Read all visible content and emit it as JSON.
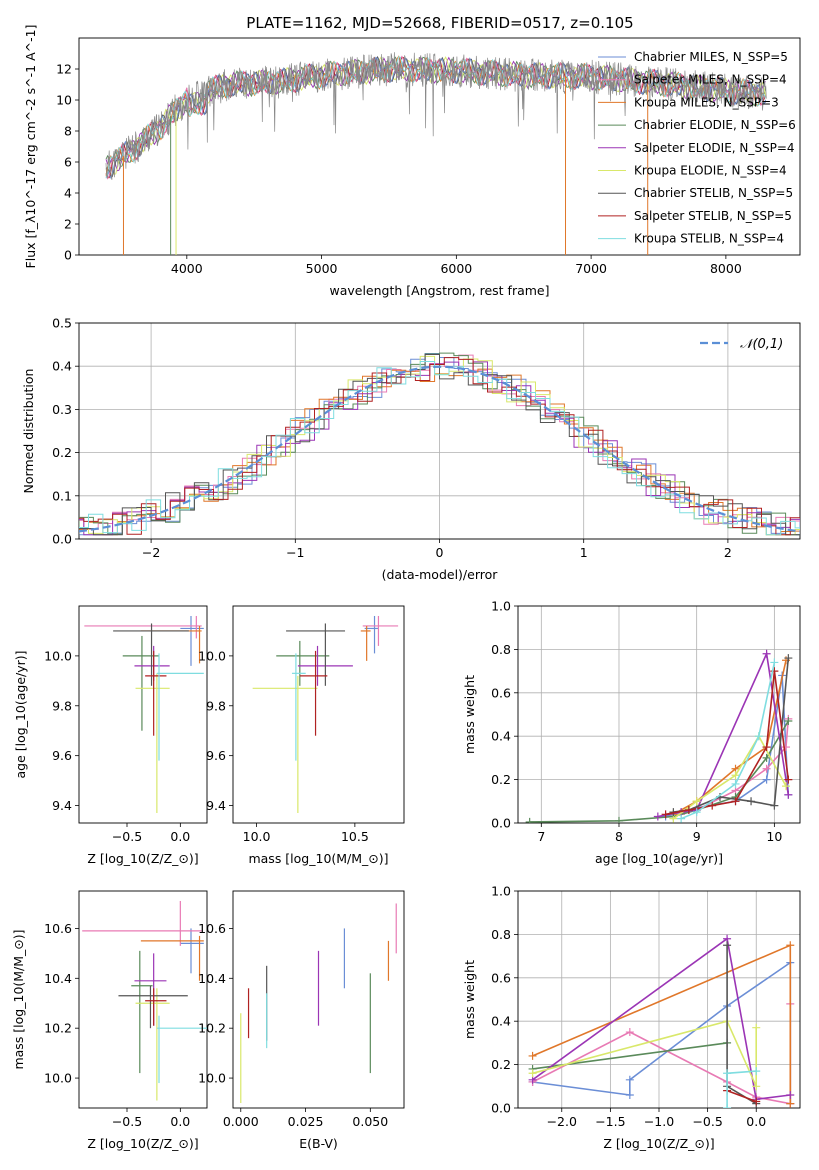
{
  "title": "PLATE=1162, MJD=52668, FIBERID=0517, z=0.105",
  "models": [
    {
      "label": "Chabrier MILES, N$_{SSP}$=5",
      "color": "#6b8ed6"
    },
    {
      "label": "Salpeter MILES, N$_{SSP}$=4",
      "color": "#e87ab4"
    },
    {
      "label": "Kroupa MILES, N$_{SSP}$=3",
      "color": "#e0772a"
    },
    {
      "label": "Chabrier ELODIE, N$_{SSP}$=6",
      "color": "#5a8a5a"
    },
    {
      "label": "Salpeter ELODIE, N$_{SSP}$=4",
      "color": "#9b35b5"
    },
    {
      "label": "Kroupa ELODIE, N$_{SSP}$=4",
      "color": "#d9e86a"
    },
    {
      "label": "Chabrier STELIB, N$_{SSP}$=5",
      "color": "#555555"
    },
    {
      "label": "Salpeter STELIB, N$_{SSP}$=5",
      "color": "#b02222"
    },
    {
      "label": "Kroupa STELIB, N$_{SSP}$=4",
      "color": "#7fdde0"
    }
  ],
  "chart_data": [
    {
      "id": "spectrum",
      "type": "line",
      "xlabel": "wavelength [Angstrom, rest frame]",
      "ylabel": "Flux [f$_\\lambda$10$^{-17}$ erg cm$^{-2}$ s$^{-1}$ A$^{-1}$]",
      "xlim": [
        3200,
        8550
      ],
      "ylim": [
        0,
        14
      ],
      "xticks": [
        4000,
        5000,
        6000,
        7000,
        8000
      ],
      "yticks": [
        0,
        2,
        4,
        6,
        8,
        10,
        12
      ],
      "data_color": "#888888",
      "continuum": {
        "x": [
          3400,
          3600,
          3800,
          4000,
          4300,
          4700,
          5000,
          5500,
          6000,
          6500,
          7000,
          7500,
          8000,
          8300
        ],
        "y": [
          5.6,
          6.8,
          8.2,
          10.1,
          11.0,
          11.2,
          11.6,
          12.0,
          11.9,
          11.6,
          11.5,
          11.1,
          10.6,
          10.4
        ]
      },
      "grid": false,
      "legend": "right"
    },
    {
      "id": "histogram",
      "type": "histogram",
      "xlabel": "(data-model)/error",
      "ylabel": "Normed distribution",
      "xlim": [
        -2.5,
        2.5
      ],
      "ylim": [
        0,
        0.5
      ],
      "xticks": [
        -2,
        -1,
        0,
        1,
        2
      ],
      "yticks": [
        0.0,
        0.1,
        0.2,
        0.3,
        0.4,
        0.5
      ],
      "reference": {
        "label": "$\\mathcal{N}(0,1)$",
        "color": "#5b8fd6",
        "dash": true
      },
      "grid": true,
      "legend": "top-right"
    },
    {
      "id": "age_vs_Z",
      "type": "errorbar",
      "xlabel": "Z [log$_{10}$($Z/Z_\\odot$)]",
      "ylabel": "age  [log$_{10}$($age/yr$)]",
      "xlim": [
        -0.95,
        0.25
      ],
      "ylim": [
        9.33,
        10.2
      ],
      "xticks": [
        -0.5,
        0.0
      ],
      "yticks": [
        9.4,
        9.6,
        9.8,
        10.0
      ],
      "points": [
        {
          "m": 0,
          "x": 0.1,
          "xerr": [
            0.1,
            0.12
          ],
          "y": 10.11,
          "yerr": [
            0.15,
            0.05
          ]
        },
        {
          "m": 1,
          "x": 0.15,
          "xerr": [
            1.05,
            0.05
          ],
          "y": 10.12,
          "yerr": [
            0.05,
            0.04
          ]
        },
        {
          "m": 2,
          "x": 0.18,
          "xerr": [
            0.55,
            0.02
          ],
          "y": 10.1,
          "yerr": [
            0.13,
            0.02
          ]
        },
        {
          "m": 3,
          "x": -0.36,
          "xerr": [
            0.18,
            0.16
          ],
          "y": 10.0,
          "yerr": [
            0.3,
            0.08
          ]
        },
        {
          "m": 4,
          "x": -0.25,
          "xerr": [
            0.18,
            0.15
          ],
          "y": 9.96,
          "yerr": [
            0.06,
            0.08
          ]
        },
        {
          "m": 5,
          "x": -0.22,
          "xerr": [
            0.2,
            0.12
          ],
          "y": 9.87,
          "yerr": [
            0.5,
            0.06
          ]
        },
        {
          "m": 6,
          "x": -0.27,
          "xerr": [
            0.36,
            0.35
          ],
          "y": 10.1,
          "yerr": [
            0.22,
            0.03
          ]
        },
        {
          "m": 7,
          "x": -0.25,
          "xerr": [
            0.08,
            0.12
          ],
          "y": 9.92,
          "yerr": [
            0.24,
            0.1
          ]
        },
        {
          "m": 8,
          "x": -0.2,
          "xerr": [
            0.02,
            0.42
          ],
          "y": 9.93,
          "yerr": [
            0.35,
            0.08
          ]
        }
      ]
    },
    {
      "id": "age_vs_mass",
      "type": "errorbar",
      "xlabel": "mass [log$_{10}$($M/M_\\odot$)]",
      "ylabel": "",
      "xlim": [
        9.88,
        10.75
      ],
      "ylim": [
        9.33,
        10.2
      ],
      "xticks": [
        10.0,
        10.5
      ],
      "yticks": [
        9.4,
        9.6,
        9.8,
        10.0
      ],
      "points": [
        {
          "m": 0,
          "x": 10.6,
          "xerr": [
            0.05,
            0.02
          ],
          "y": 10.11,
          "yerr": [
            0.1,
            0.05
          ]
        },
        {
          "m": 1,
          "x": 10.62,
          "xerr": [
            0.08,
            0.1
          ],
          "y": 10.12,
          "yerr": [
            0.08,
            0.04
          ]
        },
        {
          "m": 2,
          "x": 10.56,
          "xerr": [
            0.03,
            0.02
          ],
          "y": 10.1,
          "yerr": [
            0.12,
            0.02
          ]
        },
        {
          "m": 3,
          "x": 10.22,
          "xerr": [
            0.12,
            0.15
          ],
          "y": 10.0,
          "yerr": [
            0.12,
            0.06
          ]
        },
        {
          "m": 4,
          "x": 10.31,
          "xerr": [
            0.1,
            0.18
          ],
          "y": 9.96,
          "yerr": [
            0.08,
            0.08
          ]
        },
        {
          "m": 5,
          "x": 10.21,
          "xerr": [
            0.23,
            0.1
          ],
          "y": 9.87,
          "yerr": [
            0.5,
            0.05
          ]
        },
        {
          "m": 6,
          "x": 10.35,
          "xerr": [
            0.2,
            0.1
          ],
          "y": 10.1,
          "yerr": [
            0.22,
            0.03
          ]
        },
        {
          "m": 7,
          "x": 10.3,
          "xerr": [
            0.08,
            0.06
          ],
          "y": 9.92,
          "yerr": [
            0.24,
            0.1
          ]
        },
        {
          "m": 8,
          "x": 10.2,
          "xerr": [
            0.02,
            0.05
          ],
          "y": 9.93,
          "yerr": [
            0.35,
            0.08
          ]
        }
      ]
    },
    {
      "id": "weight_vs_age",
      "type": "line",
      "xlabel": "age  [log$_{10}$($age/yr$)]",
      "ylabel": "mass weight",
      "xlim": [
        6.7,
        10.33
      ],
      "ylim": [
        0,
        1
      ],
      "xticks": [
        7,
        8,
        9,
        10
      ],
      "yticks": [
        0.0,
        0.2,
        0.4,
        0.6,
        0.8,
        1.0
      ],
      "grid": true,
      "series": [
        {
          "m": 0,
          "x": [
            8.6,
            8.8,
            9.0,
            9.5,
            9.9,
            10.1,
            10.18
          ],
          "y": [
            0.03,
            0.05,
            0.07,
            0.1,
            0.2,
            0.68,
            0.13
          ]
        },
        {
          "m": 1,
          "x": [
            8.8,
            9.0,
            9.5,
            9.9,
            10.15,
            10.18
          ],
          "y": [
            0.04,
            0.06,
            0.15,
            0.25,
            0.35,
            0.48
          ]
        },
        {
          "m": 2,
          "x": [
            8.7,
            9.0,
            9.5,
            9.9,
            10.15
          ],
          "y": [
            0.04,
            0.1,
            0.25,
            0.35,
            0.75
          ]
        },
        {
          "m": 3,
          "x": [
            6.85,
            8.0,
            8.7,
            9.0,
            9.5,
            9.9,
            10.18
          ],
          "y": [
            0.005,
            0.01,
            0.03,
            0.06,
            0.12,
            0.3,
            0.47
          ]
        },
        {
          "m": 4,
          "x": [
            8.5,
            8.8,
            9.0,
            9.9,
            10.18
          ],
          "y": [
            0.03,
            0.05,
            0.06,
            0.78,
            0.13
          ]
        },
        {
          "m": 5,
          "x": [
            8.7,
            9.0,
            9.5,
            9.8,
            10.15
          ],
          "y": [
            0.02,
            0.1,
            0.22,
            0.4,
            0.17
          ]
        },
        {
          "m": 6,
          "x": [
            8.7,
            8.9,
            9.3,
            9.7,
            10.0,
            10.18
          ],
          "y": [
            0.05,
            0.06,
            0.12,
            0.1,
            0.08,
            0.76
          ]
        },
        {
          "m": 7,
          "x": [
            8.6,
            8.9,
            9.2,
            9.5,
            9.9,
            10.0,
            10.18
          ],
          "y": [
            0.04,
            0.06,
            0.08,
            0.1,
            0.35,
            0.7,
            0.2
          ]
        },
        {
          "m": 8,
          "x": [
            8.8,
            9.0,
            9.5,
            9.8,
            10.0
          ],
          "y": [
            0.02,
            0.05,
            0.18,
            0.4,
            0.74
          ]
        }
      ]
    },
    {
      "id": "mass_vs_Z",
      "type": "errorbar",
      "xlabel": "Z [log$_{10}$($Z/Z_\\odot$)]",
      "ylabel": "mass [log$_{10}$($M/M_\\odot$)]",
      "xlim": [
        -0.95,
        0.25
      ],
      "ylim": [
        9.88,
        10.75
      ],
      "xticks": [
        -0.5,
        0.0
      ],
      "yticks": [
        10.0,
        10.2,
        10.4,
        10.6
      ],
      "points": [
        {
          "m": 0,
          "x": 0.1,
          "xerr": [
            0.1,
            0.12
          ],
          "y": 10.54,
          "yerr": [
            0.12,
            0.06
          ]
        },
        {
          "m": 1,
          "x": 0.0,
          "xerr": [
            0.92,
            0.2
          ],
          "y": 10.59,
          "yerr": [
            0.06,
            0.12
          ]
        },
        {
          "m": 2,
          "x": 0.18,
          "xerr": [
            0.55,
            0.04
          ],
          "y": 10.55,
          "yerr": [
            0.16,
            0.02
          ]
        },
        {
          "m": 3,
          "x": -0.38,
          "xerr": [
            0.08,
            0.12
          ],
          "y": 10.37,
          "yerr": [
            0.35,
            0.14
          ]
        },
        {
          "m": 4,
          "x": -0.25,
          "xerr": [
            0.18,
            0.12
          ],
          "y": 10.39,
          "yerr": [
            0.18,
            0.11
          ]
        },
        {
          "m": 5,
          "x": -0.22,
          "xerr": [
            0.2,
            0.12
          ],
          "y": 10.3,
          "yerr": [
            0.39,
            0.06
          ]
        },
        {
          "m": 6,
          "x": -0.28,
          "xerr": [
            0.3,
            0.35
          ],
          "y": 10.33,
          "yerr": [
            0.13,
            0.04
          ]
        },
        {
          "m": 7,
          "x": -0.25,
          "xerr": [
            0.08,
            0.12
          ],
          "y": 10.31,
          "yerr": [
            0.1,
            0.05
          ]
        },
        {
          "m": 8,
          "x": -0.2,
          "xerr": [
            0.02,
            0.45
          ],
          "y": 10.2,
          "yerr": [
            0.22,
            0.05
          ]
        }
      ]
    },
    {
      "id": "mass_vs_EBV",
      "type": "errorbar",
      "xlabel": "E(B-V)",
      "ylabel": "",
      "xlim": [
        -0.003,
        0.063
      ],
      "ylim": [
        9.88,
        10.75
      ],
      "xticks": [
        0.0,
        0.025,
        0.05
      ],
      "yticks": [
        10.0,
        10.2,
        10.4,
        10.6
      ],
      "points": [
        {
          "m": 0,
          "x": 0.04,
          "xerr": [
            0,
            0
          ],
          "y": 10.48,
          "yerr": [
            0.12,
            0.12
          ]
        },
        {
          "m": 1,
          "x": 0.06,
          "xerr": [
            0,
            0
          ],
          "y": 10.59,
          "yerr": [
            0.09,
            0.11
          ]
        },
        {
          "m": 2,
          "x": 0.057,
          "xerr": [
            0,
            0
          ],
          "y": 10.47,
          "yerr": [
            0.08,
            0.08
          ]
        },
        {
          "m": 3,
          "x": 0.05,
          "xerr": [
            0,
            0
          ],
          "y": 10.22,
          "yerr": [
            0.2,
            0.2
          ]
        },
        {
          "m": 4,
          "x": 0.03,
          "xerr": [
            0,
            0
          ],
          "y": 10.36,
          "yerr": [
            0.15,
            0.15
          ]
        },
        {
          "m": 5,
          "x": 0.0,
          "xerr": [
            0,
            0
          ],
          "y": 10.08,
          "yerr": [
            0.18,
            0.18
          ]
        },
        {
          "m": 6,
          "x": 0.01,
          "xerr": [
            0,
            0
          ],
          "y": 10.3,
          "yerr": [
            0.15,
            0.15
          ]
        },
        {
          "m": 7,
          "x": 0.003,
          "xerr": [
            0,
            0
          ],
          "y": 10.26,
          "yerr": [
            0.1,
            0.1
          ]
        },
        {
          "m": 8,
          "x": 0.01,
          "xerr": [
            0,
            0
          ],
          "y": 10.23,
          "yerr": [
            0.11,
            0.11
          ]
        }
      ]
    },
    {
      "id": "weight_vs_Z",
      "type": "line",
      "xlabel": "Z [log$_{10}$($Z/Z_\\odot$)]",
      "ylabel": "mass weight",
      "xlim": [
        -2.45,
        0.45
      ],
      "ylim": [
        0,
        1
      ],
      "xticks": [
        -2.0,
        -1.5,
        -1.0,
        -0.5,
        0.0
      ],
      "yticks": [
        0.0,
        0.2,
        0.4,
        0.6,
        0.8,
        1.0
      ],
      "grid": true,
      "series": [
        {
          "m": 0,
          "x": [
            -2.3,
            -1.3,
            -1.3,
            -0.3,
            0.35,
            0.35
          ],
          "y": [
            0.12,
            0.06,
            0.13,
            0.47,
            0.67,
            0.02
          ]
        },
        {
          "m": 1,
          "x": [
            -2.3,
            -1.3,
            -0.3,
            0.0,
            0.35,
            0.35
          ],
          "y": [
            0.12,
            0.35,
            0.12,
            0.05,
            0.02,
            0.48
          ]
        },
        {
          "m": 2,
          "x": [
            -2.3,
            0.35,
            0.35
          ],
          "y": [
            0.24,
            0.75,
            0.02
          ]
        },
        {
          "m": 3,
          "x": [
            -2.3,
            -0.3
          ],
          "y": [
            0.18,
            0.3
          ]
        },
        {
          "m": 4,
          "x": [
            -2.3,
            -0.3,
            0.0,
            0.35
          ],
          "y": [
            0.13,
            0.78,
            0.04,
            0.06
          ]
        },
        {
          "m": 5,
          "x": [
            -2.3,
            -0.3,
            0.0,
            0.0
          ],
          "y": [
            0.16,
            0.4,
            0.1,
            0.37
          ]
        },
        {
          "m": 6,
          "x": [
            -0.3,
            -0.3,
            0.0
          ],
          "y": [
            0.75,
            0.1,
            0.02
          ]
        },
        {
          "m": 7,
          "x": [
            -0.3,
            0.0
          ],
          "y": [
            0.08,
            0.03
          ]
        },
        {
          "m": 8,
          "x": [
            -0.3,
            -0.3,
            0.0
          ],
          "y": [
            0.0,
            0.16,
            0.17
          ]
        }
      ]
    }
  ]
}
